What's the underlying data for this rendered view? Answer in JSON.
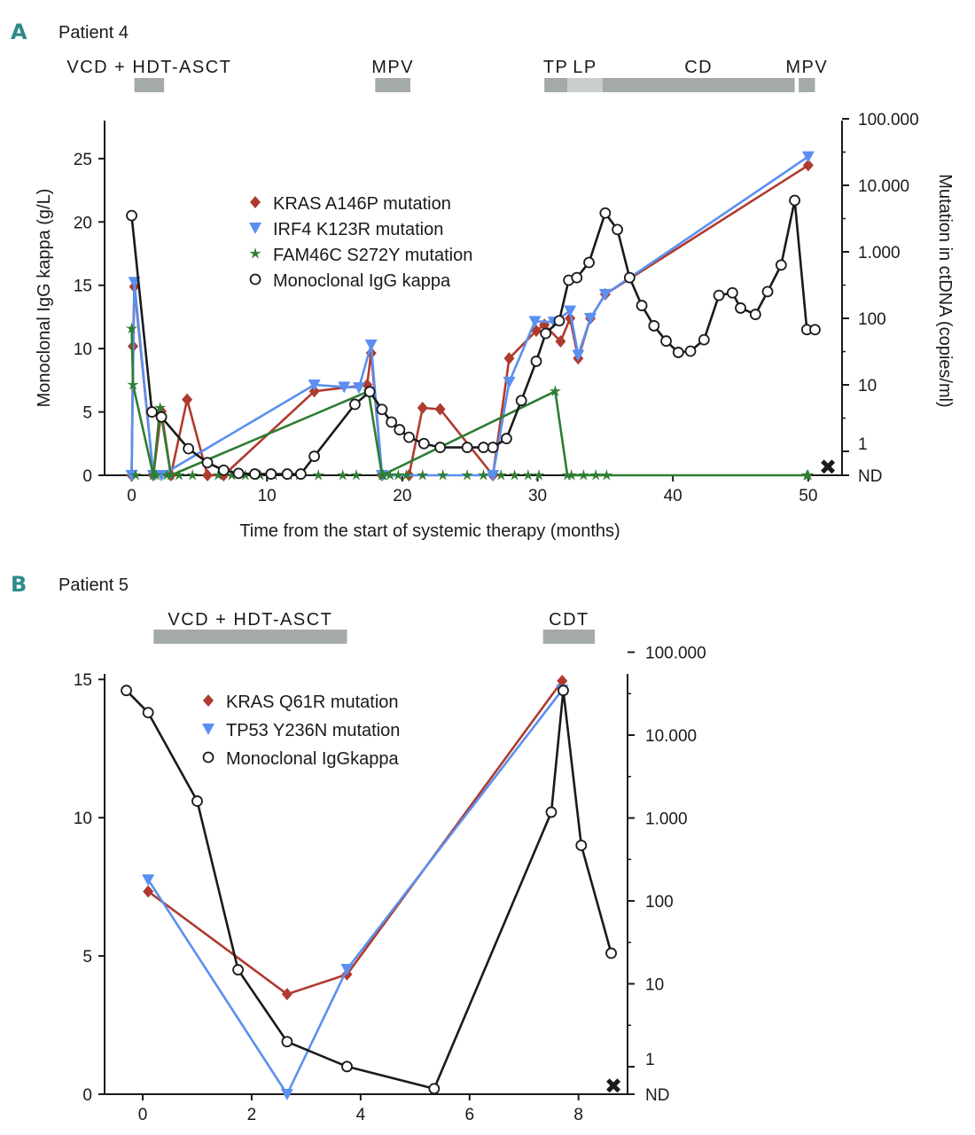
{
  "colors": {
    "kras": "#b03a2e",
    "irf4": "#5b8ff0",
    "fam": "#2e7d32",
    "igg": "#1a1a1a",
    "bar": "#a3aaa8",
    "bar_light": "#c9cecd",
    "accent": "#2e8a8a"
  },
  "chart_data": [
    {
      "type": "line",
      "panel_letter": "A",
      "title": "Patient 4",
      "xlabel": "Time from the start of systemic therapy (months)",
      "ylabel": "Monoclonal IgG kappa (g/L)",
      "y2label": "Mutation in ctDNA (copies/ml)",
      "xlim": [
        -2,
        52.5
      ],
      "ylim": [
        0,
        28
      ],
      "xticks": [
        "0",
        "10",
        "20",
        "30",
        "40",
        "50"
      ],
      "yticks": [
        "0",
        "5",
        "10",
        "15",
        "20",
        "25"
      ],
      "y2ticks": [
        "ND",
        "1",
        "10",
        "100",
        "1.000",
        "10.000",
        "100.000"
      ],
      "death_label": "✖",
      "treatments": [
        {
          "label": "VCD + HDT-ASCT",
          "start": 0.2,
          "end": 2.4
        },
        {
          "label": "MPV",
          "start": 18.0,
          "end": 20.6
        },
        {
          "label": "TP",
          "start": 30.5,
          "end": 32.2
        },
        {
          "label": "LP",
          "start": 32.2,
          "end": 34.8
        },
        {
          "label": "CD",
          "start": 34.8,
          "end": 49.0
        },
        {
          "label": "MPV",
          "start": 49.3,
          "end": 50.5
        }
      ],
      "legend": [
        {
          "name": "KRAS A146P mutation",
          "marker": "diamond",
          "key": "kras"
        },
        {
          "name": "IRF4 K123R mutation",
          "marker": "triangle",
          "key": "irf4"
        },
        {
          "name": "FAM46C S272Y mutation",
          "marker": "star",
          "key": "fam"
        },
        {
          "name": "Monoclonal IgG kappa",
          "marker": "circle",
          "key": "igg"
        }
      ],
      "series": [
        {
          "name": "Monoclonal IgG kappa",
          "key": "igg",
          "axis": "left",
          "x": [
            0,
            1.5,
            2.2,
            4.2,
            5.6,
            6.8,
            7.9,
            9.1,
            10.3,
            11.5,
            12.5,
            13.5,
            16.5,
            17.6,
            18.5,
            19.2,
            19.8,
            20.5,
            21.6,
            22.8,
            24.8,
            26.0,
            26.7,
            27.7,
            28.8,
            29.9,
            30.6,
            31.6,
            32.3,
            32.9,
            33.8,
            35.0,
            35.9,
            36.8,
            37.7,
            38.6,
            39.5,
            40.4,
            41.3,
            42.3,
            43.4,
            44.4,
            45.0,
            46.1,
            47.0,
            48.0,
            49.0,
            49.9,
            50.5
          ],
          "y": [
            20.5,
            5.0,
            4.6,
            2.1,
            1.0,
            0.4,
            0.15,
            0.1,
            0.1,
            0.1,
            0.1,
            1.5,
            5.6,
            6.6,
            5.2,
            4.2,
            3.6,
            3.0,
            2.5,
            2.2,
            2.2,
            2.2,
            2.2,
            2.9,
            5.9,
            9.0,
            11.2,
            12.2,
            15.4,
            15.6,
            16.8,
            20.7,
            19.4,
            15.6,
            13.4,
            11.8,
            10.6,
            9.7,
            9.8,
            10.7,
            14.2,
            14.4,
            13.2,
            12.7,
            14.5,
            16.6,
            21.7,
            11.5,
            11.5
          ]
        },
        {
          "name": "KRAS A146P mutation",
          "key": "kras",
          "axis": "right",
          "points": [
            [
              0,
              "ND"
            ],
            [
              0.1,
              38
            ],
            [
              0.2,
              300
            ],
            [
              1.6,
              "ND"
            ],
            [
              2.2,
              4
            ],
            [
              2.9,
              "ND"
            ],
            [
              4.1,
              6
            ],
            [
              5.6,
              "ND"
            ],
            [
              6.8,
              "ND"
            ],
            [
              13.5,
              8
            ],
            [
              17.4,
              10
            ],
            [
              17.7,
              30
            ],
            [
              18.5,
              "ND"
            ],
            [
              20.5,
              "ND"
            ],
            [
              21.5,
              4.5
            ],
            [
              22.8,
              4.3
            ],
            [
              26.7,
              "ND"
            ],
            [
              27.9,
              25
            ],
            [
              29.9,
              65
            ],
            [
              30.5,
              80
            ],
            [
              31.7,
              45
            ],
            [
              32.4,
              100
            ],
            [
              33.0,
              25
            ],
            [
              33.9,
              100
            ],
            [
              35.0,
              230
            ],
            [
              50.0,
              20000
            ]
          ]
        },
        {
          "name": "IRF4 K123R mutation",
          "key": "irf4",
          "axis": "right",
          "points": [
            [
              0,
              "ND"
            ],
            [
              0.2,
              350
            ],
            [
              1.6,
              "ND"
            ],
            [
              2.2,
              "ND"
            ],
            [
              13.5,
              10
            ],
            [
              15.7,
              9.3
            ],
            [
              16.8,
              9.1
            ],
            [
              17.7,
              40
            ],
            [
              18.5,
              "ND"
            ],
            [
              26.7,
              "ND"
            ],
            [
              27.9,
              11
            ],
            [
              29.8,
              90
            ],
            [
              31.2,
              88
            ],
            [
              32.4,
              130
            ],
            [
              33.0,
              28
            ],
            [
              33.9,
              100
            ],
            [
              35.0,
              230
            ],
            [
              50.0,
              27000
            ]
          ]
        },
        {
          "name": "FAM46C S272Y mutation",
          "key": "fam",
          "axis": "right",
          "points": [
            [
              0,
              70
            ],
            [
              0.1,
              10
            ],
            [
              1.6,
              "ND"
            ],
            [
              2.1,
              4.5
            ],
            [
              2.9,
              "ND"
            ],
            [
              17.5,
              8
            ],
            [
              18.5,
              "ND"
            ],
            [
              31.3,
              8
            ],
            [
              32.2,
              "ND"
            ],
            [
              50.0,
              "ND"
            ]
          ],
          "nd_marks": [
            0.3,
            1.8,
            2.6,
            3.5,
            4.5,
            6.4,
            7.4,
            8.4,
            9.5,
            10.5,
            11.6,
            12.4,
            13.8,
            15.6,
            16.6,
            18.6,
            19.1,
            19.7,
            20.3,
            21.5,
            23.0,
            24.8,
            26.0,
            27.3,
            28.3,
            29.3,
            30.1,
            32.5,
            33.4,
            34.3,
            35.1,
            49.9
          ]
        }
      ]
    },
    {
      "type": "line",
      "panel_letter": "B",
      "title": "Patient 5",
      "xlabel": "",
      "ylabel": "",
      "xlim": [
        -0.7,
        8.9
      ],
      "ylim": [
        0,
        15.2
      ],
      "xticks": [
        "0",
        "2",
        "4",
        "6",
        "8"
      ],
      "yticks": [
        "0",
        "5",
        "10",
        "15"
      ],
      "y2ticks": [
        "ND",
        "1",
        "10",
        "100",
        "1.000",
        "10.000",
        "100.000"
      ],
      "death_label": "✖",
      "treatments": [
        {
          "label": "VCD + HDT-ASCT",
          "start": 0.2,
          "end": 3.75
        },
        {
          "label": "CDT",
          "start": 7.35,
          "end": 8.3
        }
      ],
      "legend": [
        {
          "name": "KRAS Q61R mutation",
          "marker": "diamond",
          "key": "kras"
        },
        {
          "name": "TP53 Y236N mutation",
          "marker": "triangle",
          "key": "irf4"
        },
        {
          "name": "Monoclonal IgGkappa",
          "marker": "circle",
          "key": "igg"
        }
      ],
      "series": [
        {
          "name": "Monoclonal IgGkappa",
          "key": "igg",
          "axis": "left",
          "x": [
            -0.3,
            0.1,
            1.0,
            1.75,
            2.65,
            3.75,
            5.35,
            7.5,
            7.72,
            8.05,
            8.6
          ],
          "y": [
            14.6,
            13.8,
            10.6,
            4.5,
            1.9,
            1.0,
            0.2,
            10.2,
            14.6,
            9.0,
            5.1
          ]
        },
        {
          "name": "KRAS Q61R mutation",
          "key": "kras",
          "axis": "right",
          "points": [
            [
              0.1,
              130
            ],
            [
              2.65,
              7.5
            ],
            [
              3.75,
              13
            ],
            [
              7.7,
              45000
            ]
          ]
        },
        {
          "name": "TP53 Y236N mutation",
          "key": "irf4",
          "axis": "right",
          "points": [
            [
              0.1,
              180
            ],
            [
              2.65,
              "ND"
            ],
            [
              3.75,
              15
            ],
            [
              7.7,
              35000
            ]
          ]
        }
      ]
    }
  ]
}
